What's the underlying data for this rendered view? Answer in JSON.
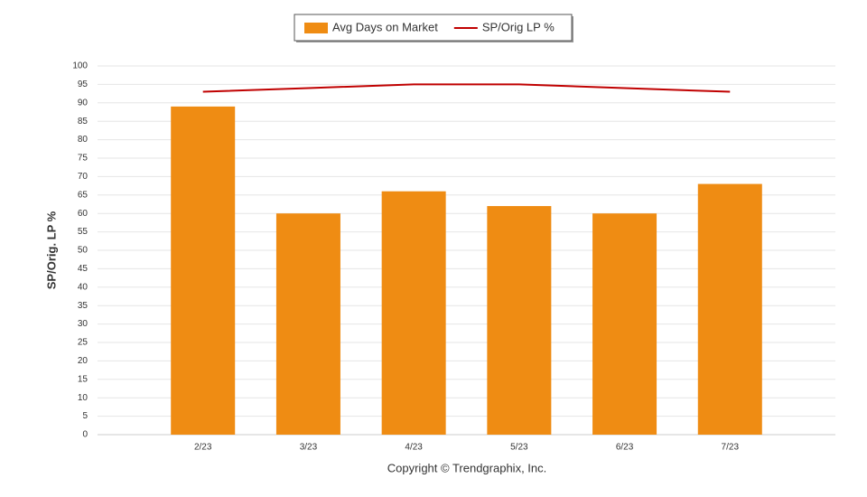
{
  "chart_data": {
    "type": "bar",
    "ylabel": "SP/Orig. LP %",
    "xlabel": "Copyright © Trendgraphix, Inc.",
    "categories": [
      "2/23",
      "3/23",
      "4/23",
      "5/23",
      "6/23",
      "7/23"
    ],
    "series": [
      {
        "name": "Avg Days on Market",
        "type": "bar",
        "color": "#ef8c13",
        "values": [
          89,
          60,
          66,
          62,
          60,
          68
        ]
      },
      {
        "name": "SP/Orig LP %",
        "type": "line",
        "color": "#c00000",
        "values": [
          93,
          94,
          95,
          95,
          94,
          93
        ]
      }
    ],
    "ylim": [
      0,
      100
    ],
    "yticks": [
      0,
      5,
      10,
      15,
      20,
      25,
      30,
      35,
      40,
      45,
      50,
      55,
      60,
      65,
      70,
      75,
      80,
      85,
      90,
      95,
      100
    ],
    "grid": true,
    "legend": "top"
  }
}
